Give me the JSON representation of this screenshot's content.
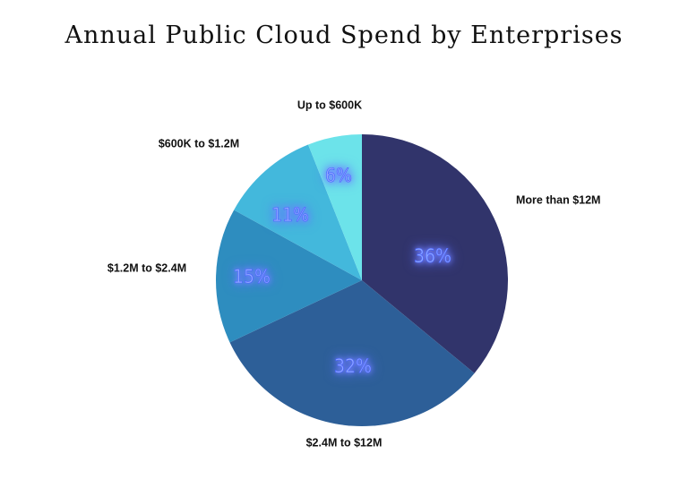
{
  "chart_data": {
    "type": "pie",
    "title": "Annual Public Cloud Spend by Enterprises",
    "slices": [
      {
        "label": "More than $12M",
        "value": 36,
        "display": "36%",
        "color": "#31346b"
      },
      {
        "label": "$2.4M to $12M",
        "value": 32,
        "display": "32%",
        "color": "#2d5f98"
      },
      {
        "label": "$1.2M to $2.4M",
        "value": 15,
        "display": "15%",
        "color": "#2e8dbf"
      },
      {
        "label": "$600K to $1.2M",
        "value": 11,
        "display": "11%",
        "color": "#43b8dc"
      },
      {
        "label": "Up to $600K",
        "value": 6,
        "display": "6%",
        "color": "#6ce3ea"
      }
    ],
    "start_angle": "12 o'clock",
    "direction": "clockwise",
    "legend": "none"
  }
}
